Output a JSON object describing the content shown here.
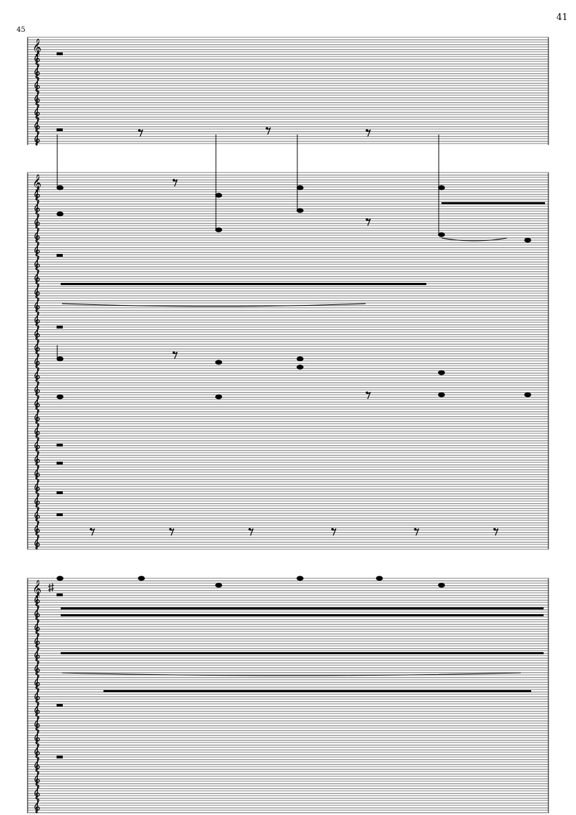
{
  "page": {
    "number": "41"
  },
  "score": {
    "measure_number": "45",
    "clef_glyph": "𝄞",
    "systems": [
      {
        "clefs": 8,
        "sharp_key": false
      },
      {
        "clefs": 27,
        "sharp_key": false
      },
      {
        "clefs": 17,
        "sharp_key": true
      }
    ],
    "colors": {
      "ink": "#000000",
      "staff": "#555555"
    }
  }
}
